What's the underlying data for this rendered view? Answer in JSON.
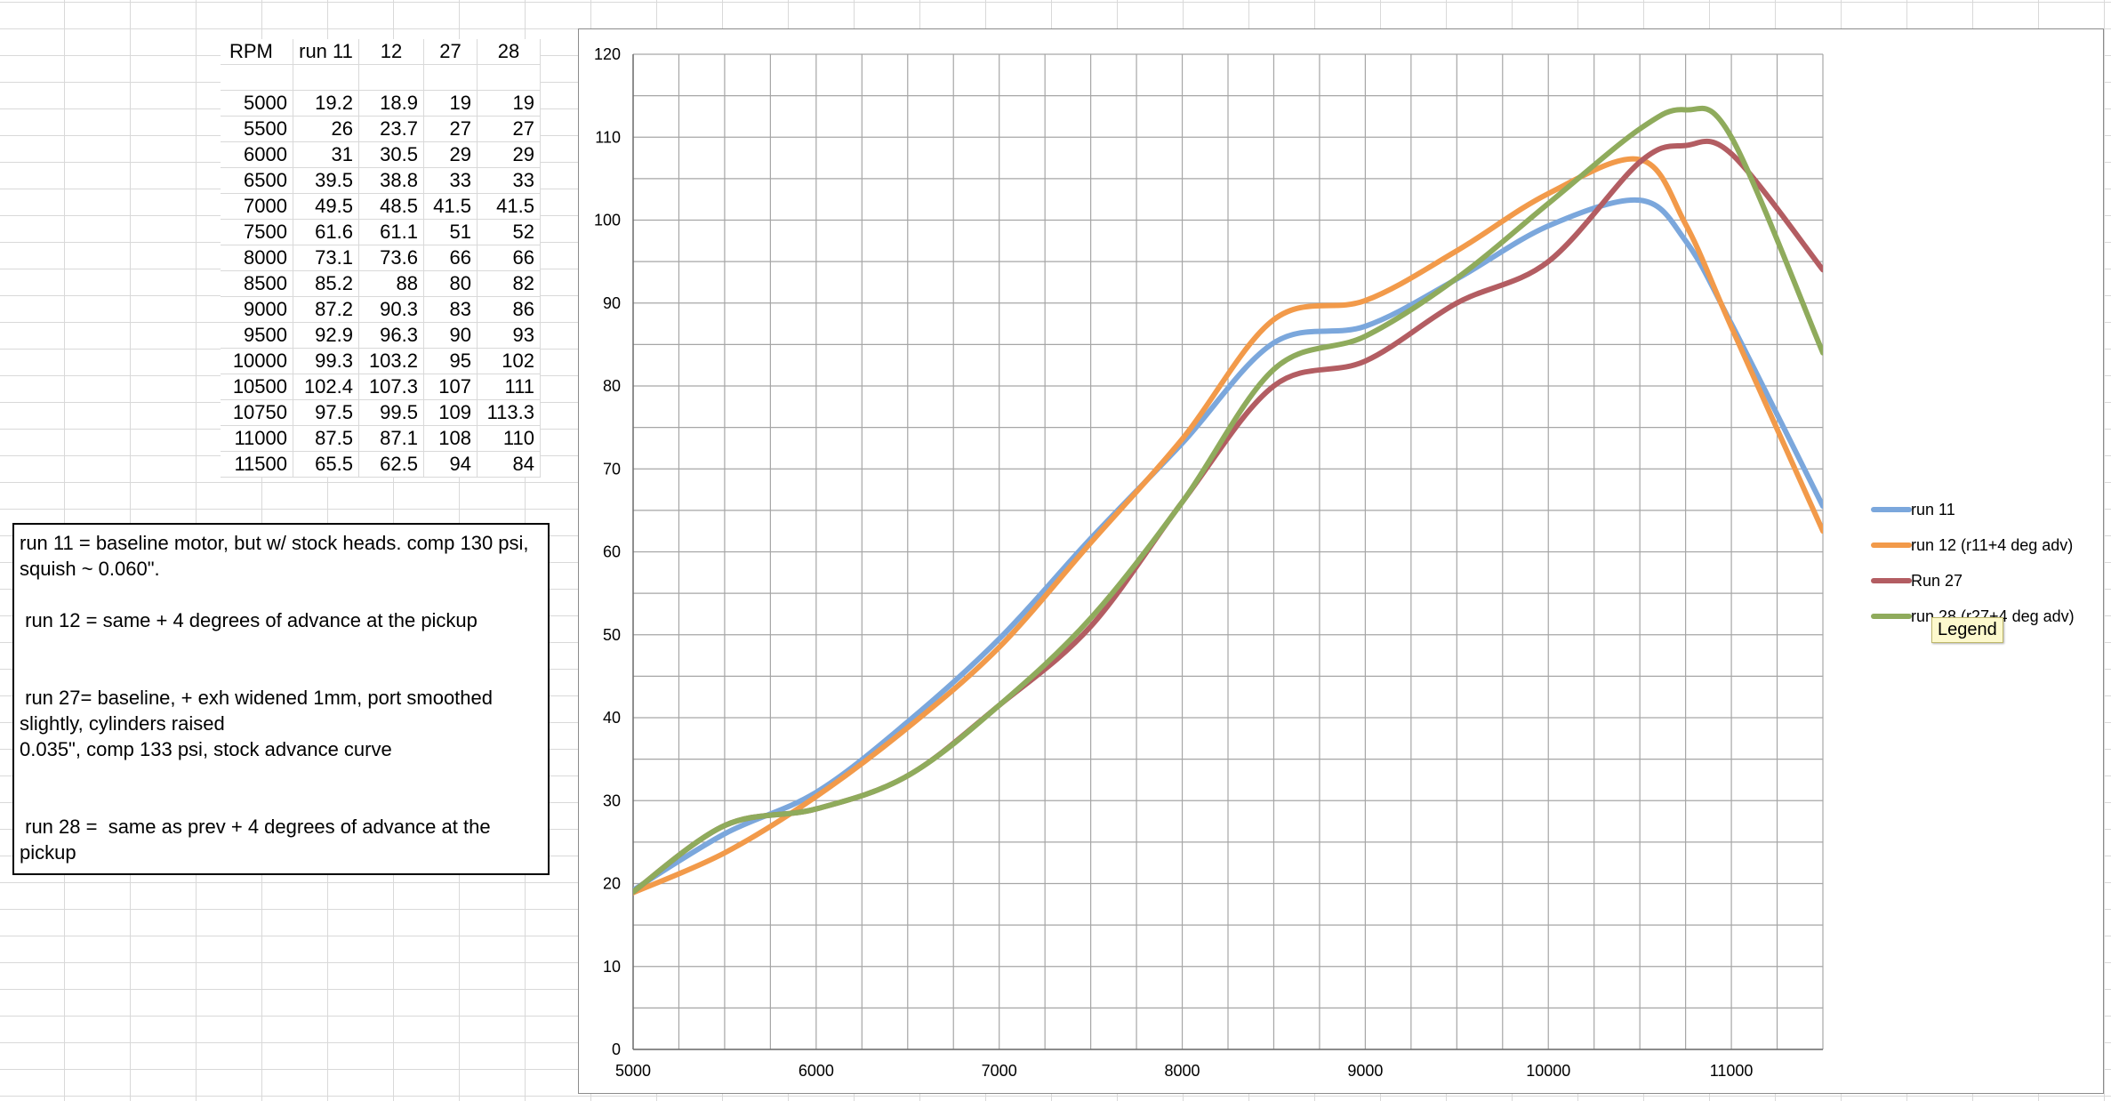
{
  "table": {
    "headers": [
      "RPM",
      "run 11",
      "12",
      "27",
      "28"
    ],
    "rows": [
      [
        "5000",
        "19.2",
        "18.9",
        "19",
        "19"
      ],
      [
        "5500",
        "26",
        "23.7",
        "27",
        "27"
      ],
      [
        "6000",
        "31",
        "30.5",
        "29",
        "29"
      ],
      [
        "6500",
        "39.5",
        "38.8",
        "33",
        "33"
      ],
      [
        "7000",
        "49.5",
        "48.5",
        "41.5",
        "41.5"
      ],
      [
        "7500",
        "61.6",
        "61.1",
        "51",
        "52"
      ],
      [
        "8000",
        "73.1",
        "73.6",
        "66",
        "66"
      ],
      [
        "8500",
        "85.2",
        "88",
        "80",
        "82"
      ],
      [
        "9000",
        "87.2",
        "90.3",
        "83",
        "86"
      ],
      [
        "9500",
        "92.9",
        "96.3",
        "90",
        "93"
      ],
      [
        "10000",
        "99.3",
        "103.2",
        "95",
        "102"
      ],
      [
        "10500",
        "102.4",
        "107.3",
        "107",
        "111"
      ],
      [
        "10750",
        "97.5",
        "99.5",
        "109",
        "113.3"
      ],
      [
        "11000",
        "87.5",
        "87.1",
        "108",
        "110"
      ],
      [
        "11500",
        "65.5",
        "62.5",
        "94",
        "84"
      ]
    ]
  },
  "notes": [
    "run 11 = baseline motor, but w/ stock heads. comp 130 psi, squish ~ 0.060\".",
    "",
    " run 12 = same + 4 degrees of advance at the pickup",
    "",
    "",
    " run 27= baseline, + exh widened 1mm, port smoothed slightly, cylinders raised",
    "0.035\", comp 133 psi, stock advance curve",
    "",
    "",
    " run 28 =  same as prev + 4 degrees of advance at the pickup"
  ],
  "tooltip": "Legend",
  "chart_data": {
    "type": "line",
    "x": [
      5000,
      5500,
      6000,
      6500,
      7000,
      7500,
      8000,
      8500,
      9000,
      9500,
      10000,
      10500,
      10750,
      11000,
      11500
    ],
    "series": [
      {
        "name": "run 11",
        "color": "#7ba7dc",
        "values": [
          19.2,
          26,
          31,
          39.5,
          49.5,
          61.6,
          73.1,
          85.2,
          87.2,
          92.9,
          99.3,
          102.4,
          97.5,
          87.5,
          65.5
        ]
      },
      {
        "name": "run 12 (r11+4 deg adv)",
        "color": "#f29a4a",
        "values": [
          18.9,
          23.7,
          30.5,
          38.8,
          48.5,
          61.1,
          73.6,
          88,
          90.3,
          96.3,
          103.2,
          107.3,
          99.5,
          87.1,
          62.5
        ]
      },
      {
        "name": "Run 27",
        "color": "#b35d62",
        "values": [
          19,
          27,
          29,
          33,
          41.5,
          51,
          66,
          80,
          83,
          90,
          95,
          107,
          109,
          108,
          94
        ]
      },
      {
        "name": "run 28 (r27+4 deg adv)",
        "color": "#8fab5c",
        "values": [
          19,
          27,
          29,
          33,
          41.5,
          52,
          66,
          82,
          86,
          93,
          102,
          111,
          113.3,
          110,
          84
        ]
      }
    ],
    "xlim": [
      5000,
      11500
    ],
    "ylim": [
      0,
      120
    ],
    "x_ticks": [
      5000,
      6000,
      7000,
      8000,
      9000,
      10000,
      11000
    ],
    "y_ticks": [
      0,
      10,
      20,
      30,
      40,
      50,
      60,
      70,
      80,
      90,
      100,
      110,
      120
    ],
    "x_minor_step": 250,
    "y_minor_step": 5,
    "grid": true,
    "legend_position": "right"
  }
}
